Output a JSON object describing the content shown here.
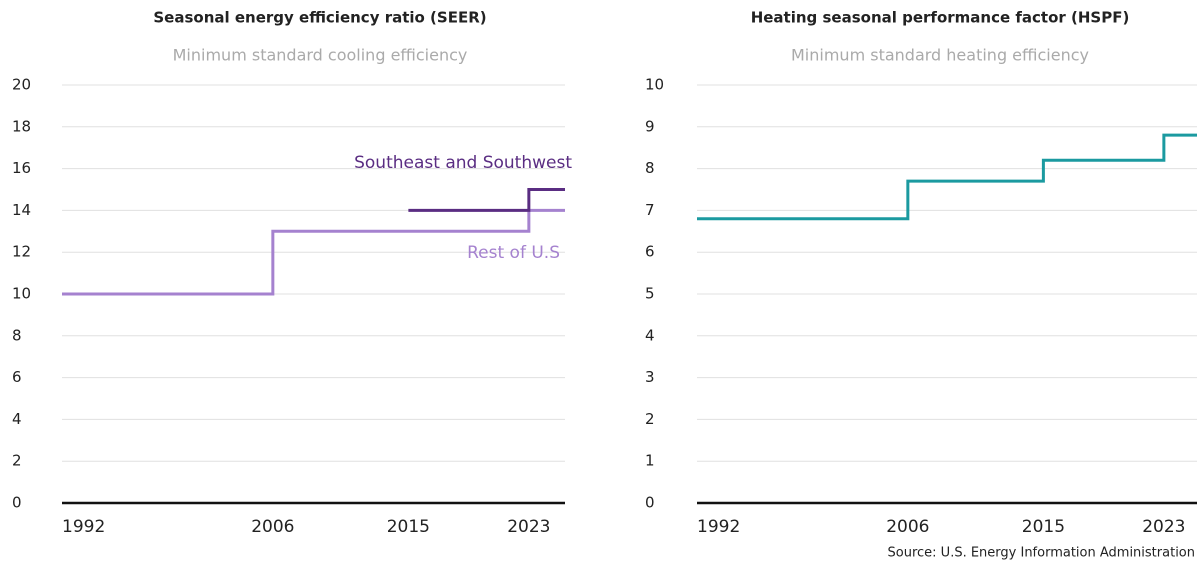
{
  "chart_data": [
    {
      "type": "step",
      "title": "Seasonal energy efficiency ratio (SEER)",
      "subtitle": "Minimum standard cooling efficiency",
      "x": [
        1992,
        2006,
        2015,
        2023,
        2025.4
      ],
      "xlim": [
        1992,
        2025.4
      ],
      "xticks": [
        1992,
        2006,
        2015,
        2023
      ],
      "ylim": [
        0,
        20
      ],
      "yticks": [
        0,
        2,
        4,
        6,
        8,
        10,
        12,
        14,
        16,
        18,
        20
      ],
      "grid": true,
      "series": [
        {
          "name": "Rest of U.S",
          "color": "#a582cf",
          "values": [
            10,
            13,
            13,
            14,
            14
          ]
        },
        {
          "name": "Southeast and Southwest",
          "color": "#5a2d82",
          "values": [
            null,
            null,
            14,
            15,
            15
          ]
        }
      ]
    },
    {
      "type": "step",
      "title": "Heating seasonal performance factor (HSPF)",
      "subtitle": "Minimum standard heating efficiency",
      "x": [
        1992,
        2006,
        2015,
        2023,
        2025.2
      ],
      "xlim": [
        1992,
        2025.2
      ],
      "xticks": [
        1992,
        2006,
        2015,
        2023
      ],
      "ylim": [
        0,
        10
      ],
      "yticks": [
        0,
        1,
        2,
        3,
        4,
        5,
        6,
        7,
        8,
        9,
        10
      ],
      "grid": true,
      "series": [
        {
          "color": "#1b9aa0",
          "values": [
            6.8,
            7.7,
            8.2,
            8.8,
            8.8
          ]
        }
      ],
      "source": "Source: U.S. Energy Information Administration"
    }
  ]
}
